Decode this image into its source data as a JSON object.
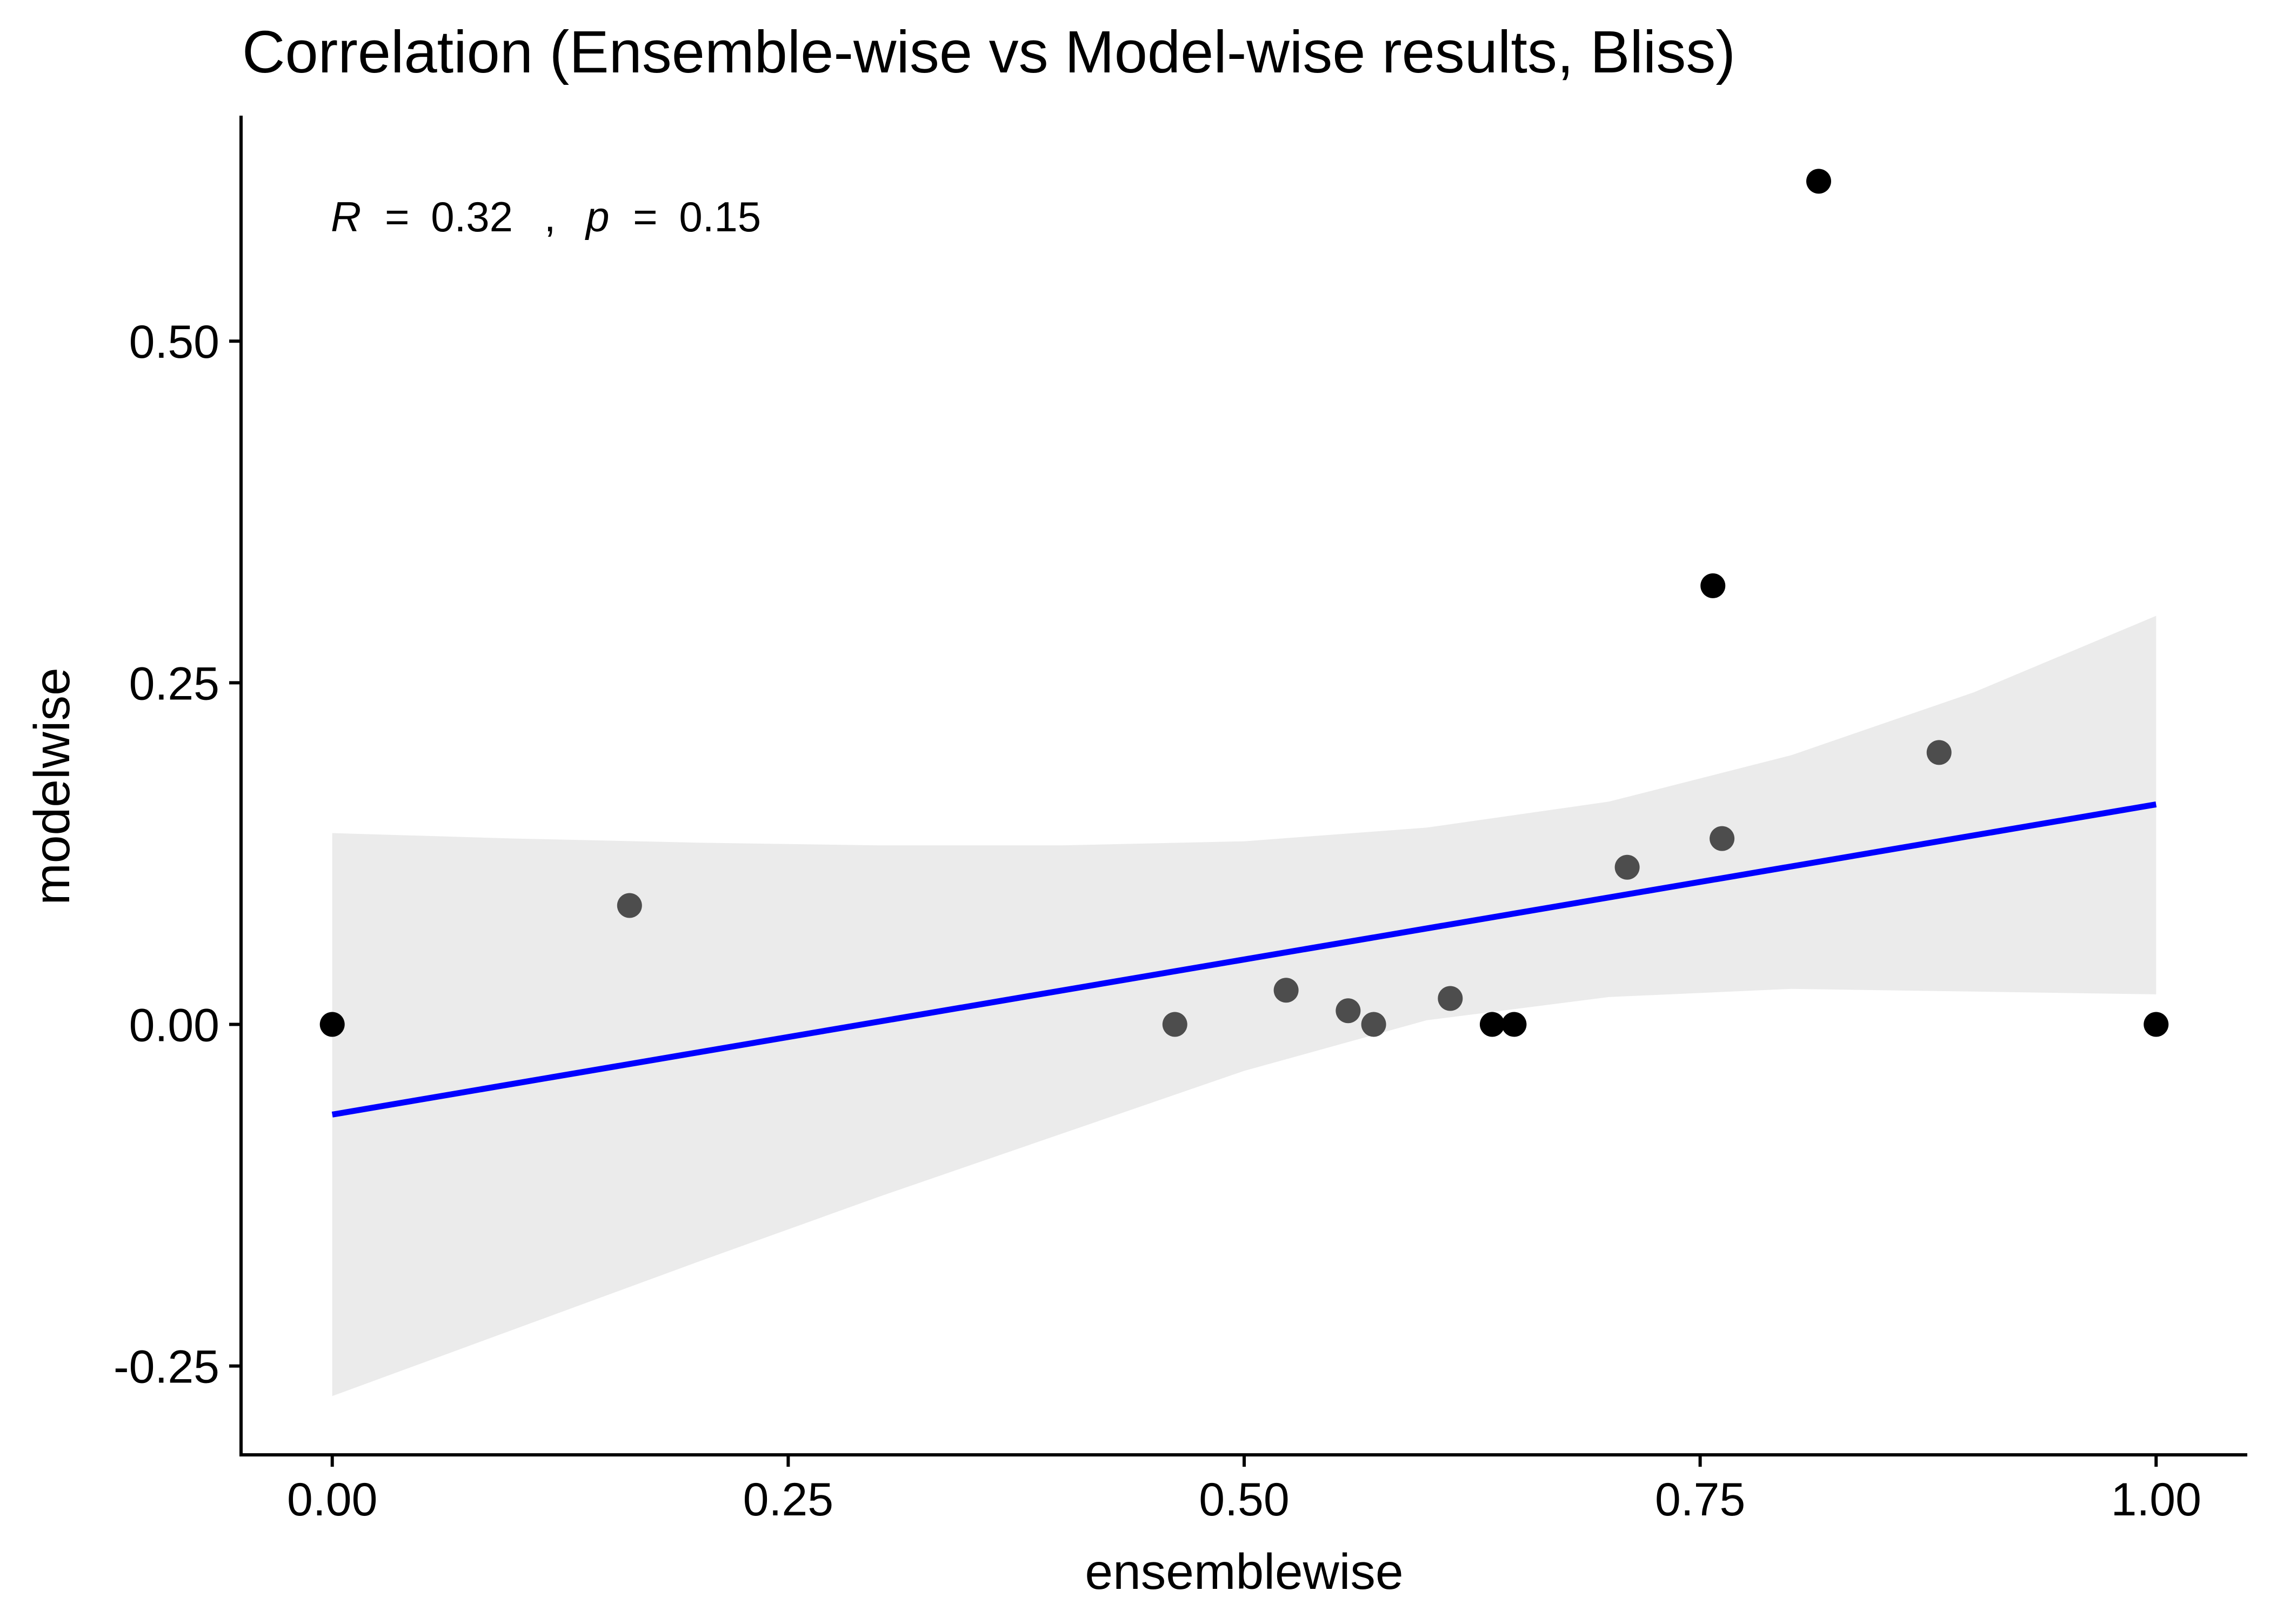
{
  "chart_data": {
    "type": "scatter",
    "title": "Correlation (Ensemble-wise vs Model-wise results, Bliss)",
    "xlabel": "ensemblewise",
    "ylabel": "modelwise",
    "xlim": [
      -0.05,
      1.05
    ],
    "ylim": [
      -0.315,
      0.665
    ],
    "xticks": [
      0.0,
      0.25,
      0.5,
      0.75,
      1.0
    ],
    "xtick_labels": [
      "0.00",
      "0.25",
      "0.50",
      "0.75",
      "1.00"
    ],
    "yticks": [
      -0.25,
      0.0,
      0.25,
      0.5
    ],
    "ytick_labels": [
      "-0.25",
      "0.00",
      "0.25",
      "0.50"
    ],
    "grid": false,
    "annotation": {
      "r_symbol": "R",
      "r_value": "= 0.32",
      "separator": ",",
      "p_symbol": "p",
      "p_value": "= 0.15"
    },
    "points": [
      {
        "x": 0.0,
        "y": 0.0
      },
      {
        "x": 0.163,
        "y": 0.087
      },
      {
        "x": 0.462,
        "y": 0.0
      },
      {
        "x": 0.523,
        "y": 0.025
      },
      {
        "x": 0.557,
        "y": 0.01
      },
      {
        "x": 0.571,
        "y": 0.0
      },
      {
        "x": 0.613,
        "y": 0.019
      },
      {
        "x": 0.636,
        "y": 0.0
      },
      {
        "x": 0.648,
        "y": 0.0
      },
      {
        "x": 0.71,
        "y": 0.115
      },
      {
        "x": 0.757,
        "y": 0.321
      },
      {
        "x": 0.762,
        "y": 0.136
      },
      {
        "x": 0.815,
        "y": 0.617
      },
      {
        "x": 0.881,
        "y": 0.199
      },
      {
        "x": 1.0,
        "y": 0.0
      }
    ],
    "regression": {
      "x": [
        0.0,
        1.0
      ],
      "y": [
        -0.066,
        0.161
      ],
      "color": "#0000ff"
    },
    "confidence_band": {
      "color": "#ebebeb",
      "x": [
        0.0,
        0.1,
        0.2,
        0.3,
        0.4,
        0.5,
        0.6,
        0.7,
        0.8,
        0.9,
        1.0
      ],
      "upper": [
        0.14,
        0.136,
        0.133,
        0.131,
        0.131,
        0.134,
        0.144,
        0.163,
        0.197,
        0.243,
        0.299
      ],
      "lower": [
        -0.272,
        -0.223,
        -0.174,
        -0.126,
        -0.08,
        -0.034,
        0.003,
        0.02,
        0.026,
        0.024,
        0.022
      ]
    },
    "colors": {
      "point": "#000000",
      "point_overlap": "#4d4d4d",
      "axis": "#000000"
    }
  }
}
